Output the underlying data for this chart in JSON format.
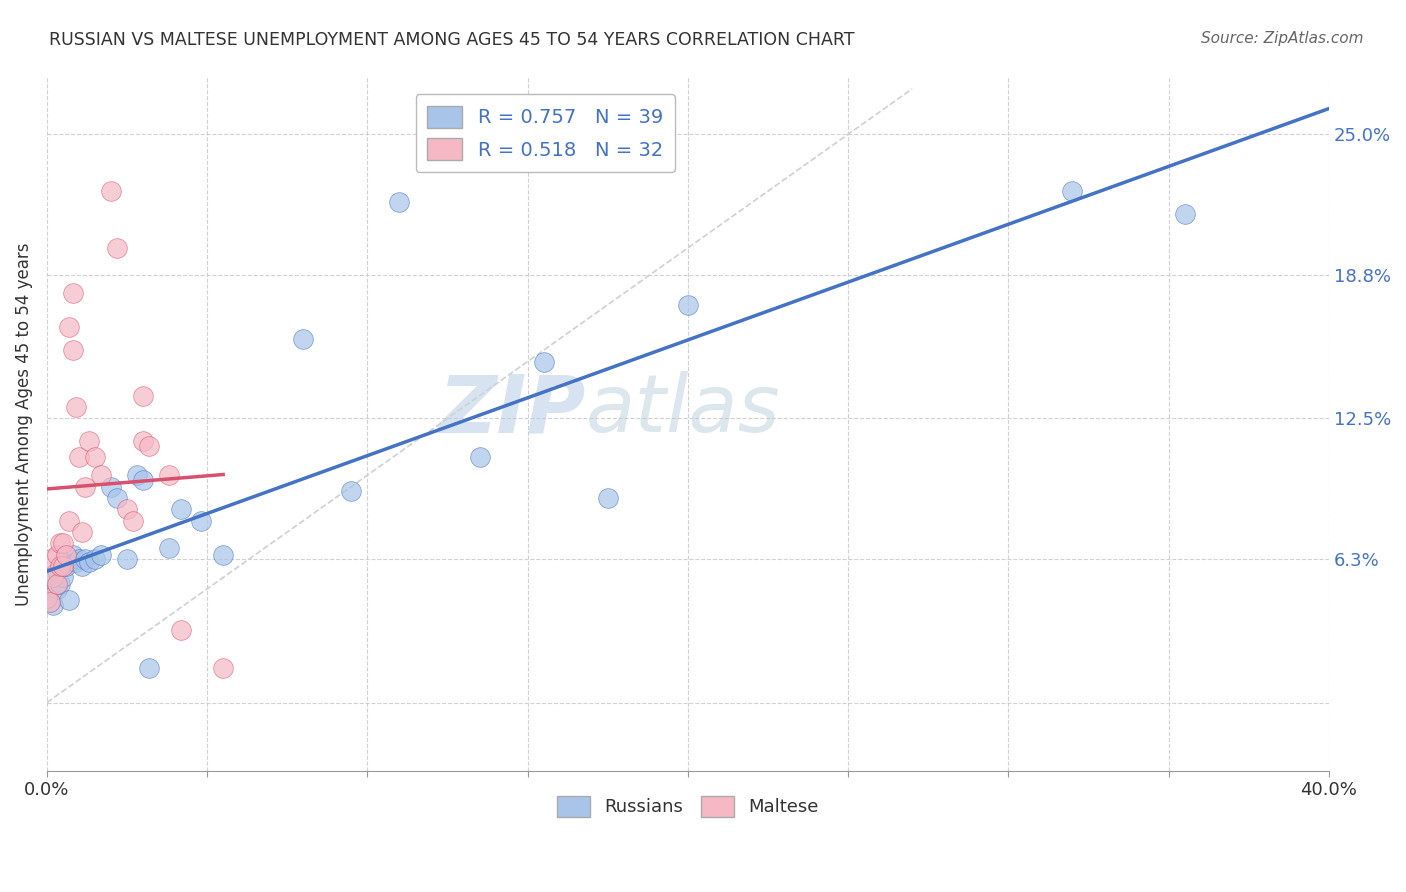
{
  "title": "RUSSIAN VS MALTESE UNEMPLOYMENT AMONG AGES 45 TO 54 YEARS CORRELATION CHART",
  "source": "Source: ZipAtlas.com",
  "ylabel": "Unemployment Among Ages 45 to 54 years",
  "xlim": [
    0.0,
    0.4
  ],
  "ylim": [
    -0.03,
    0.275
  ],
  "russian_R": 0.757,
  "russian_N": 39,
  "maltese_R": 0.518,
  "maltese_N": 32,
  "russian_color": "#a8c4e8",
  "maltese_color": "#f5b8c4",
  "russian_line_color": "#4472c4",
  "maltese_line_color": "#d94f6e",
  "diagonal_color": "#d0d0d0",
  "watermark_zip": "ZIP",
  "watermark_atlas": "atlas",
  "background_color": "#ffffff",
  "russians_x": [
    0.0,
    0.001,
    0.001,
    0.002,
    0.002,
    0.003,
    0.003,
    0.004,
    0.005,
    0.005,
    0.006,
    0.007,
    0.008,
    0.009,
    0.01,
    0.011,
    0.012,
    0.013,
    0.015,
    0.017,
    0.02,
    0.022,
    0.025,
    0.028,
    0.03,
    0.032,
    0.038,
    0.042,
    0.048,
    0.055,
    0.08,
    0.095,
    0.11,
    0.135,
    0.155,
    0.175,
    0.2,
    0.32,
    0.355
  ],
  "russians_y": [
    0.046,
    0.044,
    0.05,
    0.043,
    0.056,
    0.05,
    0.058,
    0.052,
    0.055,
    0.062,
    0.06,
    0.045,
    0.065,
    0.062,
    0.063,
    0.06,
    0.063,
    0.062,
    0.063,
    0.065,
    0.095,
    0.09,
    0.063,
    0.1,
    0.098,
    0.015,
    0.068,
    0.085,
    0.08,
    0.065,
    0.16,
    0.093,
    0.22,
    0.108,
    0.15,
    0.09,
    0.175,
    0.225,
    0.215
  ],
  "maltese_x": [
    0.0,
    0.001,
    0.001,
    0.002,
    0.003,
    0.003,
    0.004,
    0.004,
    0.005,
    0.005,
    0.006,
    0.007,
    0.007,
    0.008,
    0.008,
    0.009,
    0.01,
    0.011,
    0.012,
    0.013,
    0.015,
    0.017,
    0.02,
    0.022,
    0.025,
    0.027,
    0.03,
    0.03,
    0.032,
    0.038,
    0.042,
    0.055
  ],
  "maltese_y": [
    0.046,
    0.044,
    0.063,
    0.055,
    0.052,
    0.065,
    0.06,
    0.07,
    0.06,
    0.07,
    0.065,
    0.08,
    0.165,
    0.155,
    0.18,
    0.13,
    0.108,
    0.075,
    0.095,
    0.115,
    0.108,
    0.1,
    0.225,
    0.2,
    0.085,
    0.08,
    0.135,
    0.115,
    0.113,
    0.1,
    0.032,
    0.015
  ]
}
